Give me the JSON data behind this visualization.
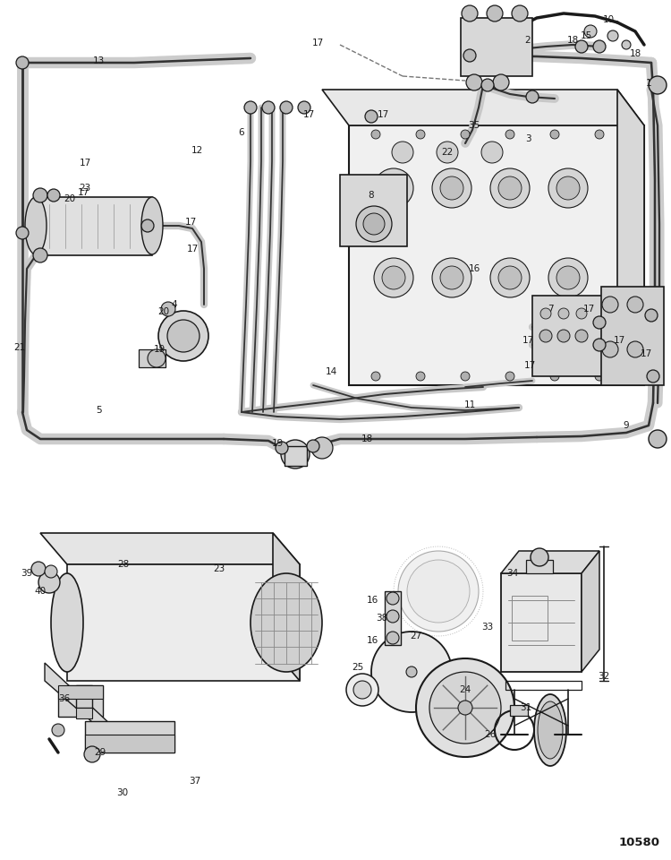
{
  "bg_color": "#ffffff",
  "line_color": "#1a1a1a",
  "diagram_id": "10580",
  "label_fontsize": 7.5,
  "id_fontsize": 10
}
